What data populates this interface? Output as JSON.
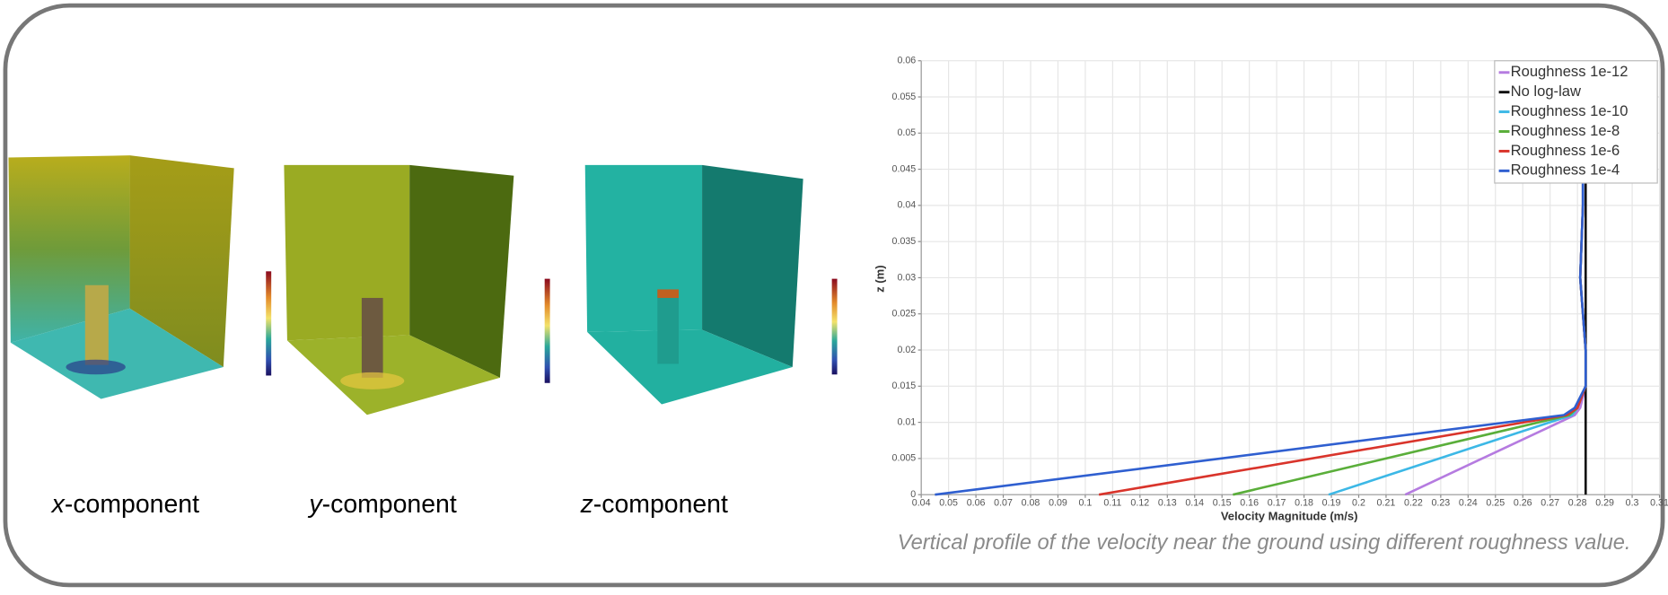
{
  "panels": [
    {
      "var": "x",
      "suffix": "-component"
    },
    {
      "var": "y",
      "suffix": "-component"
    },
    {
      "var": "z",
      "suffix": "-component"
    }
  ],
  "caption": "Vertical profile of the velocity near the ground using different roughness value.",
  "chart_data": {
    "type": "line",
    "xlabel": "Velocity Magnitude (m/s)",
    "ylabel": "z (m)",
    "xlim": [
      0.04,
      0.31
    ],
    "ylim": [
      0,
      0.06
    ],
    "xticks": [
      0.04,
      0.05,
      0.06,
      0.07,
      0.08,
      0.09,
      0.1,
      0.11,
      0.12,
      0.13,
      0.14,
      0.15,
      0.16,
      0.17,
      0.18,
      0.19,
      0.2,
      0.21,
      0.22,
      0.23,
      0.24,
      0.25,
      0.26,
      0.27,
      0.28,
      0.29,
      0.3,
      0.31
    ],
    "yticks": [
      0,
      0.005,
      0.01,
      0.015,
      0.02,
      0.025,
      0.03,
      0.035,
      0.04,
      0.045,
      0.05,
      0.055,
      0.06
    ],
    "grid": true,
    "legend": "top-right",
    "series": [
      {
        "name": "Roughness 1e-12",
        "color": "#b57be0",
        "x": [
          0.217,
          0.279,
          0.281,
          0.283,
          0.283,
          0.281,
          0.282,
          0.282
        ],
        "values": [
          0,
          0.011,
          0.012,
          0.015,
          0.02,
          0.03,
          0.04,
          0.045
        ]
      },
      {
        "name": "No log-law",
        "color": "#111111",
        "x": [
          0.283,
          0.283
        ],
        "values": [
          0,
          0.045
        ]
      },
      {
        "name": "Roughness 1e-10",
        "color": "#3cb8e6",
        "x": [
          0.189,
          0.278,
          0.28,
          0.283,
          0.283,
          0.281,
          0.282,
          0.282
        ],
        "values": [
          0,
          0.011,
          0.012,
          0.015,
          0.02,
          0.03,
          0.04,
          0.045
        ]
      },
      {
        "name": "Roughness 1e-8",
        "color": "#5aae3a",
        "x": [
          0.154,
          0.277,
          0.28,
          0.283,
          0.283,
          0.281,
          0.282,
          0.282
        ],
        "values": [
          0,
          0.011,
          0.012,
          0.015,
          0.02,
          0.03,
          0.04,
          0.045
        ]
      },
      {
        "name": "Roughness 1e-6",
        "color": "#d9342b",
        "x": [
          0.105,
          0.276,
          0.28,
          0.283,
          0.283,
          0.281,
          0.282,
          0.282
        ],
        "values": [
          0,
          0.011,
          0.012,
          0.015,
          0.02,
          0.03,
          0.04,
          0.045
        ]
      },
      {
        "name": "Roughness 1e-4",
        "color": "#2f5fd0",
        "x": [
          0.045,
          0.275,
          0.279,
          0.283,
          0.283,
          0.281,
          0.282,
          0.282
        ],
        "values": [
          0,
          0.011,
          0.012,
          0.015,
          0.02,
          0.03,
          0.04,
          0.045
        ]
      }
    ]
  }
}
